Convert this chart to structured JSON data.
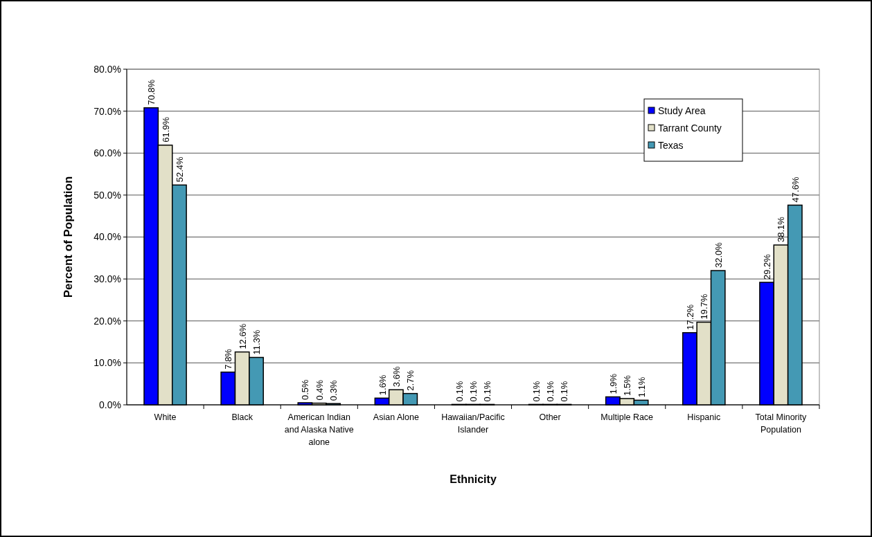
{
  "chart_data": {
    "type": "bar",
    "xlabel": "Ethnicity",
    "ylabel": "Percent of Population",
    "categories": [
      "White",
      "Black",
      "American Indian and Alaska Native alone",
      "Asian Alone",
      "Hawaiian/Pacific Islander",
      "Other",
      "Multiple Race",
      "Hispanic",
      "Total Minority Population"
    ],
    "series": [
      {
        "name": "Study Area",
        "color": "#0000ff",
        "values": [
          70.8,
          7.8,
          0.5,
          1.6,
          0.1,
          0.1,
          1.9,
          17.2,
          29.2
        ],
        "value_labels": [
          "70.8%",
          "7.8%",
          "0.5%",
          "1.6%",
          "0.1%",
          "0.1%",
          "1.9%",
          "17.2%",
          "29.2%"
        ]
      },
      {
        "name": "Tarrant County",
        "color": "#e2e0c8",
        "values": [
          61.9,
          12.6,
          0.4,
          3.6,
          0.1,
          0.1,
          1.5,
          19.7,
          38.1
        ],
        "value_labels": [
          "61.9%",
          "12.6%",
          "0.4%",
          "3.6%",
          "0.1%",
          "0.1%",
          "1.5%",
          "19.7%",
          "38.1%"
        ]
      },
      {
        "name": "Texas",
        "color": "#4499b4",
        "values": [
          52.4,
          11.3,
          0.3,
          2.7,
          0.1,
          0.1,
          1.1,
          32.0,
          47.6
        ],
        "value_labels": [
          "52.4%",
          "11.3%",
          "0.3%",
          "2.7%",
          "0.1%",
          "0.1%",
          "1.1%",
          "32.0%",
          "47.6%"
        ]
      }
    ],
    "ylim": [
      0,
      80
    ],
    "yticks": [
      {
        "value": 0,
        "label": "0.0%"
      },
      {
        "value": 10,
        "label": "10.0%"
      },
      {
        "value": 20,
        "label": "20.0%"
      },
      {
        "value": 30,
        "label": "30.0%"
      },
      {
        "value": 40,
        "label": "40.0%"
      },
      {
        "value": 50,
        "label": "50.0%"
      },
      {
        "value": 60,
        "label": "60.0%"
      },
      {
        "value": 70,
        "label": "70.0%"
      },
      {
        "value": 80,
        "label": "80.0%"
      }
    ],
    "grid": "y",
    "legend": "top right"
  }
}
